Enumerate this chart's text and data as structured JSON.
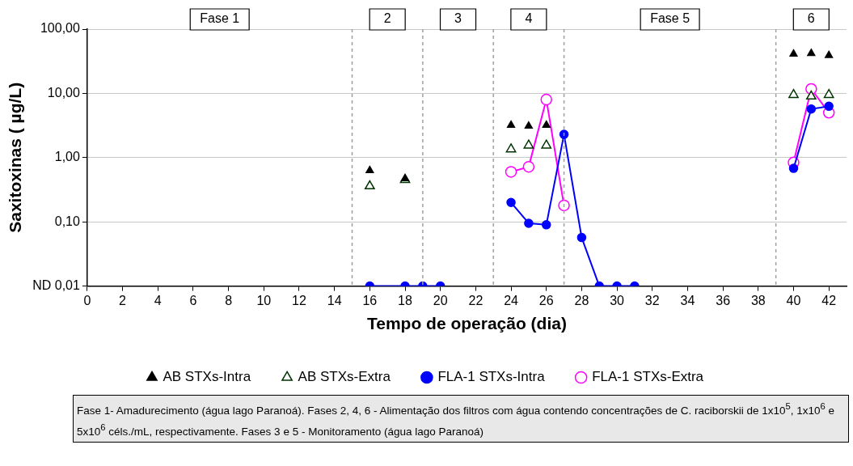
{
  "chart_data": {
    "type": "scatter",
    "xlabel": "Tempo de operação (dia)",
    "ylabel": "Saxitoxinas ( µg/L)",
    "xlim": [
      0,
      43
    ],
    "xticks": [
      0,
      2,
      4,
      6,
      8,
      10,
      12,
      14,
      16,
      18,
      20,
      22,
      24,
      26,
      28,
      30,
      32,
      34,
      36,
      38,
      40,
      42
    ],
    "ylim": [
      0.01,
      100
    ],
    "yticks": [
      {
        "value": 0.01,
        "label": "ND 0,01"
      },
      {
        "value": 0.1,
        "label": "0,10"
      },
      {
        "value": 1,
        "label": "1,00"
      },
      {
        "value": 10,
        "label": "10,00"
      },
      {
        "value": 100,
        "label": "100,00"
      }
    ],
    "log": "y",
    "grid": "y",
    "legend": "bottom",
    "ref_lines": [
      {
        "axis": "x",
        "value": 15,
        "line_style": "dashed",
        "color": "#a0a0a0"
      },
      {
        "axis": "x",
        "value": 19,
        "line_style": "dashed",
        "color": "#a0a0a0"
      },
      {
        "axis": "x",
        "value": 23,
        "line_style": "dashed",
        "color": "#a0a0a0"
      },
      {
        "axis": "x",
        "value": 27,
        "line_style": "dashed",
        "color": "#a0a0a0"
      },
      {
        "axis": "x",
        "value": 39,
        "line_style": "dashed",
        "color": "#a0a0a0"
      }
    ],
    "series": [
      {
        "name": "AB STXs-Intra",
        "marker": "triangle",
        "color": "#000000",
        "x": [
          16,
          18,
          24,
          25,
          26,
          40,
          41,
          42
        ],
        "values": [
          0.63,
          0.47,
          3.2,
          3.1,
          3.2,
          41,
          42,
          39
        ]
      },
      {
        "name": "AB STXs-Extra",
        "marker": "triangle",
        "color": "#003300",
        "x": [
          16,
          18,
          24,
          25,
          26,
          40,
          41,
          42
        ],
        "values": [
          0.36,
          0.45,
          1.35,
          1.55,
          1.55,
          9.5,
          9,
          9.5
        ]
      },
      {
        "name": "FLA-1 STXs-Intra",
        "type": "line",
        "marker": "circle",
        "color": "#0000ff",
        "x": [
          16,
          18,
          19,
          20,
          22,
          24,
          25,
          26,
          27,
          28,
          29,
          30,
          31,
          35,
          40,
          41,
          42
        ],
        "values": [
          0.01,
          0.01,
          0.01,
          0.01,
          null,
          0.2,
          0.095,
          0.09,
          2.3,
          0.057,
          0.01,
          0.01,
          0.01,
          null,
          0.68,
          5.7,
          6.3
        ]
      },
      {
        "name": "FLA-1 STXs-Extra",
        "type": "line",
        "marker": "circle",
        "color": "#ff00ff",
        "x": [
          24,
          25,
          26,
          27,
          33,
          40,
          41,
          42
        ],
        "values": [
          0.6,
          0.72,
          8,
          0.18,
          null,
          0.84,
          11.7,
          5
        ]
      }
    ],
    "annotations": [
      "Fase 1",
      "2",
      "3",
      "4",
      "Fase 5",
      "6",
      "Fase 1- Amadurecimento (água lago Paranoá). Fases 2, 4, 6 - Alimentação dos filtros com água contendo concentrações de C. raciborskii  de 1x10$^{5}$, 1x10$^{6}$ e 5x10$^{6}$ céls./mL, respectivamente. Fases 3 e 5 - Monitoramento (água lago Paranoá)"
    ]
  }
}
